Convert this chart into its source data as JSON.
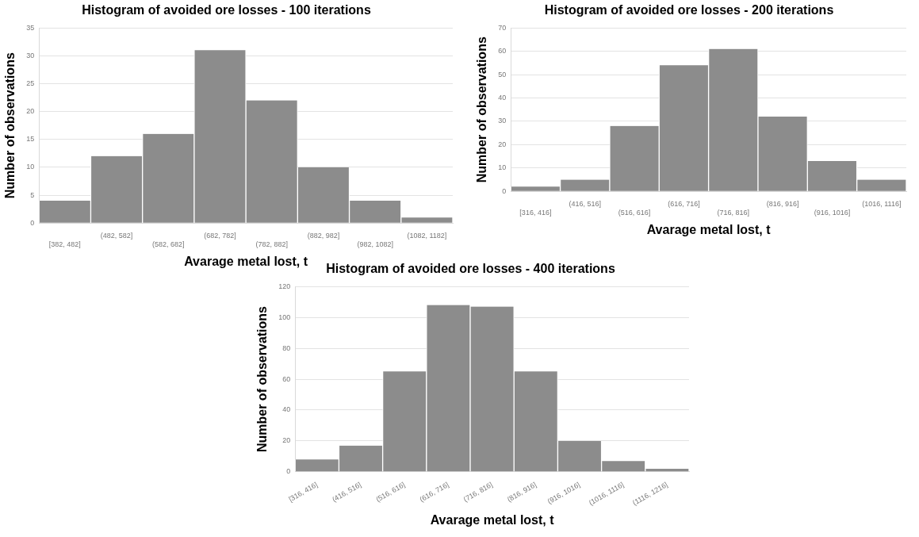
{
  "chart_data": [
    {
      "type": "bar",
      "title": "Histogram of avoided ore losses - 100 iterations",
      "xlabel": "Avarage metal lost, t",
      "ylabel": "Number of observations",
      "categories": [
        "[382, 482]",
        "(482, 582]",
        "(582, 682]",
        "(682, 782]",
        "(782, 882]",
        "(882, 982]",
        "(982, 1082]",
        "(1082, 1182]"
      ],
      "values": [
        4,
        12,
        16,
        31,
        22,
        10,
        4,
        1
      ],
      "color": "#8c8c8c",
      "ylim": [
        0,
        35
      ],
      "yticks": [
        0,
        5,
        10,
        15,
        20,
        25,
        30,
        35
      ],
      "grid": "y",
      "legend": false
    },
    {
      "type": "bar",
      "title": "Histogram of avoided ore losses - 200 iterations",
      "xlabel": "Avarage metal lost, t",
      "ylabel": "Number of observations",
      "categories": [
        "[316, 416]",
        "(416, 516]",
        "(516, 616]",
        "(616, 716]",
        "(716, 816]",
        "(816, 916]",
        "(916, 1016]",
        "(1016, 1116]"
      ],
      "values": [
        2,
        5,
        28,
        54,
        61,
        32,
        13,
        5
      ],
      "color": "#8c8c8c",
      "ylim": [
        0,
        70
      ],
      "yticks": [
        0,
        10,
        20,
        30,
        40,
        50,
        60,
        70
      ],
      "grid": "y",
      "legend": false
    },
    {
      "type": "bar",
      "title": "Histogram of avoided ore losses - 400 iterations",
      "xlabel": "Avarage metal lost, t",
      "ylabel": "Number of observations",
      "categories": [
        "[316, 416]",
        "(416, 516]",
        "(516, 616]",
        "(616, 716]",
        "(716, 816]",
        "(816, 916]",
        "(916, 1016]",
        "(1016, 1116]",
        "(1116, 1216]"
      ],
      "values": [
        8,
        17,
        65,
        108,
        107,
        65,
        20,
        7,
        2
      ],
      "color": "#8c8c8c",
      "ylim": [
        0,
        120
      ],
      "yticks": [
        0,
        20,
        40,
        60,
        80,
        100,
        120
      ],
      "grid": "y",
      "legend": false
    }
  ]
}
